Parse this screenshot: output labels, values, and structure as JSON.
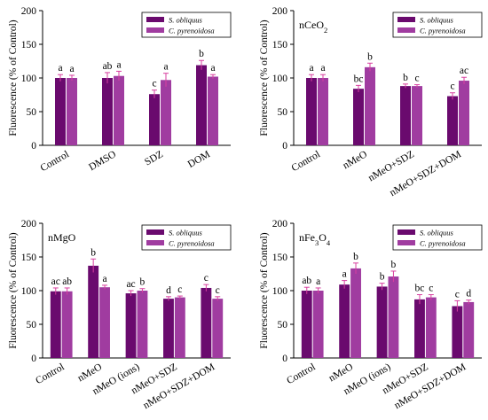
{
  "chart_data": [
    {
      "type": "bar",
      "title": "",
      "ylabel": "Fluorescence (% of Control)",
      "ylim": [
        0,
        200
      ],
      "yticks": [
        0,
        50,
        100,
        150,
        200
      ],
      "legend": "top-right",
      "categories": [
        "Control",
        "DMSO",
        "SDZ",
        "DOM"
      ],
      "series": [
        {
          "name": "S. obliquus",
          "color": "#6a0a6e",
          "values": [
            100,
            100,
            76,
            119
          ],
          "errors": [
            5,
            8,
            6,
            7
          ],
          "letters": [
            "a",
            "ab",
            "c",
            "b"
          ]
        },
        {
          "name": "C. pyrenoidosa",
          "color": "#a03ca0",
          "values": [
            100,
            103,
            97,
            102
          ],
          "errors": [
            4,
            7,
            10,
            3
          ],
          "letters": [
            "a",
            "a",
            "a",
            "a"
          ]
        }
      ]
    },
    {
      "type": "bar",
      "title": "nCeO",
      "title_sub": "2",
      "ylabel": "Fluorescence (% of Control)",
      "ylim": [
        0,
        200
      ],
      "yticks": [
        0,
        50,
        100,
        150,
        200
      ],
      "legend": "top-right",
      "categories": [
        "Control",
        "nMeO",
        "nMeO+SDZ",
        "nMeO+SDZ+DOM"
      ],
      "series": [
        {
          "name": "S. obliquus",
          "color": "#6a0a6e",
          "values": [
            100,
            84,
            88,
            73
          ],
          "errors": [
            5,
            5,
            3,
            5
          ],
          "letters": [
            "a",
            "bc",
            "b",
            "c"
          ]
        },
        {
          "name": "C. pyrenoidosa",
          "color": "#a03ca0",
          "values": [
            100,
            116,
            88,
            96
          ],
          "errors": [
            5,
            6,
            2,
            5
          ],
          "letters": [
            "a",
            "b",
            "c",
            "ac"
          ]
        }
      ]
    },
    {
      "type": "bar",
      "title": "nMgO",
      "title_sub": "",
      "ylabel": "Fluorescence (% of Control)",
      "ylim": [
        0,
        200
      ],
      "yticks": [
        0,
        50,
        100,
        150,
        200
      ],
      "legend": "top-right",
      "categories": [
        "Control",
        "nMeO",
        "nMeO (ions)",
        "nMeO+SDZ",
        "nMeO+SDZ+DOM"
      ],
      "series": [
        {
          "name": "S. obliquus",
          "color": "#6a0a6e",
          "values": [
            99,
            137,
            96,
            88,
            104
          ],
          "errors": [
            5,
            10,
            4,
            3,
            5
          ],
          "letters": [
            "ac",
            "b",
            "ac",
            "d",
            "c"
          ]
        },
        {
          "name": "C. pyrenoidosa",
          "color": "#a03ca0",
          "values": [
            99,
            105,
            100,
            90,
            88
          ],
          "errors": [
            5,
            3,
            3,
            2,
            3
          ],
          "letters": [
            "ab",
            "a",
            "b",
            "c",
            "c"
          ]
        }
      ]
    },
    {
      "type": "bar",
      "title": "nFe",
      "title_sub": "3",
      "title_mid": "O",
      "title_sub2": "4",
      "ylabel": "Fluorescence (% of Control)",
      "ylim": [
        0,
        200
      ],
      "yticks": [
        0,
        50,
        100,
        150,
        200
      ],
      "legend": "top-right",
      "categories": [
        "Control",
        "nMeO",
        "nMeO (ions)",
        "nMeO+SDZ",
        "nMeO+SDZ+DOM"
      ],
      "series": [
        {
          "name": "S. obliquus",
          "color": "#6a0a6e",
          "values": [
            100,
            109,
            106,
            87,
            77
          ],
          "errors": [
            5,
            6,
            5,
            7,
            8
          ],
          "letters": [
            "ab",
            "a",
            "b",
            "bc",
            "c"
          ]
        },
        {
          "name": "C. pyrenoidosa",
          "color": "#a03ca0",
          "values": [
            100,
            133,
            121,
            90,
            83
          ],
          "errors": [
            4,
            8,
            8,
            4,
            3
          ],
          "letters": [
            "a",
            "b",
            "b",
            "c",
            "d"
          ]
        }
      ]
    }
  ]
}
